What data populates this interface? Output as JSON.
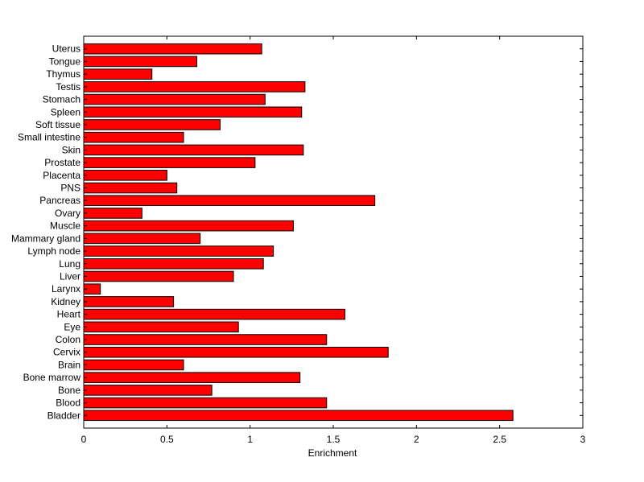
{
  "chart_data": {
    "type": "bar",
    "orientation": "horizontal",
    "title": "",
    "xlabel": "Enrichment",
    "ylabel": "",
    "xlim": [
      0,
      3
    ],
    "xticks": [
      "0",
      "0.5",
      "1",
      "1.5",
      "2",
      "2.5",
      "3"
    ],
    "grid": false,
    "bar_color": "#ff0000",
    "edge_color": "#000000",
    "categories": [
      "Bladder",
      "Blood",
      "Bone",
      "Bone marrow",
      "Brain",
      "Cervix",
      "Colon",
      "Eye",
      "Heart",
      "Kidney",
      "Larynx",
      "Liver",
      "Lung",
      "Lymph node",
      "Mammary gland",
      "Muscle",
      "Ovary",
      "Pancreas",
      "PNS",
      "Placenta",
      "Prostate",
      "Skin",
      "Small intestine",
      "Soft tissue",
      "Spleen",
      "Stomach",
      "Testis",
      "Thymus",
      "Tongue",
      "Uterus"
    ],
    "values": [
      2.58,
      1.46,
      0.77,
      1.3,
      0.6,
      1.83,
      1.46,
      0.93,
      1.57,
      0.54,
      0.1,
      0.9,
      1.08,
      1.14,
      0.7,
      1.26,
      0.35,
      1.75,
      0.56,
      0.5,
      1.03,
      1.32,
      0.6,
      0.82,
      1.31,
      1.09,
      1.33,
      0.41,
      0.68,
      1.07
    ]
  }
}
